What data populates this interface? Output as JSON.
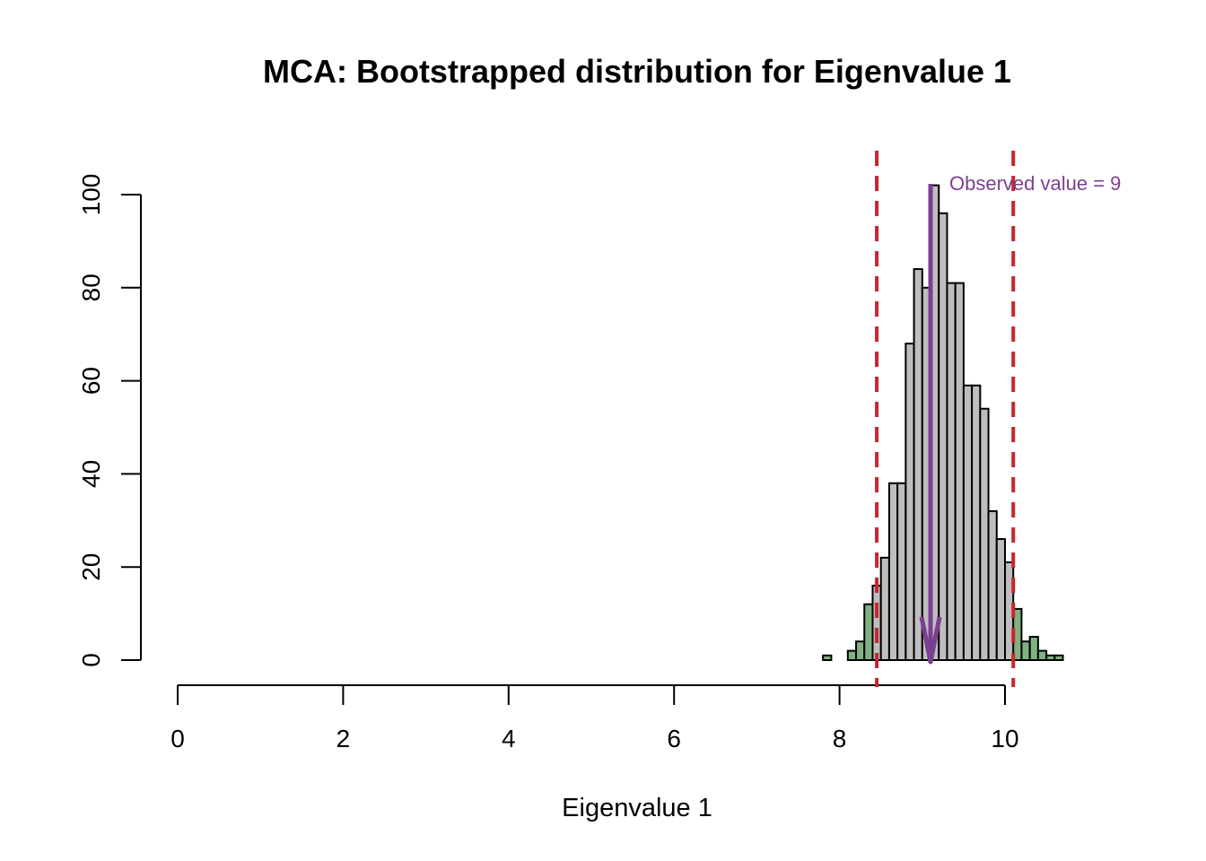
{
  "chart_data": {
    "type": "bar",
    "title": "MCA: Bootstrapped distribution for Eigenvalue 1",
    "xlabel": "Eigenvalue 1",
    "ylabel": "",
    "xlim": [
      0,
      10.7
    ],
    "ylim": [
      0,
      100
    ],
    "x_ticks": [
      "0",
      "2",
      "4",
      "6",
      "8",
      "10"
    ],
    "y_ticks": [
      "0",
      "20",
      "40",
      "60",
      "80",
      "100"
    ],
    "bin_width": 0.1,
    "bin_start": 7.8,
    "counts": [
      1,
      0,
      0,
      2,
      4,
      12,
      16,
      22,
      38,
      38,
      68,
      84,
      80,
      102,
      96,
      81,
      81,
      59,
      59,
      54,
      32,
      26,
      21,
      11,
      4,
      5,
      2,
      1,
      1
    ],
    "ci_lower": 8.45,
    "ci_upper": 10.1,
    "observed_value": 9.1,
    "annotation": "Observed value = 9",
    "colors": {
      "inside_ci": "#bebebe",
      "outside_ci": "#7fb27f",
      "ci_lines": "#c8262c",
      "observed": "#7b3f91"
    }
  }
}
